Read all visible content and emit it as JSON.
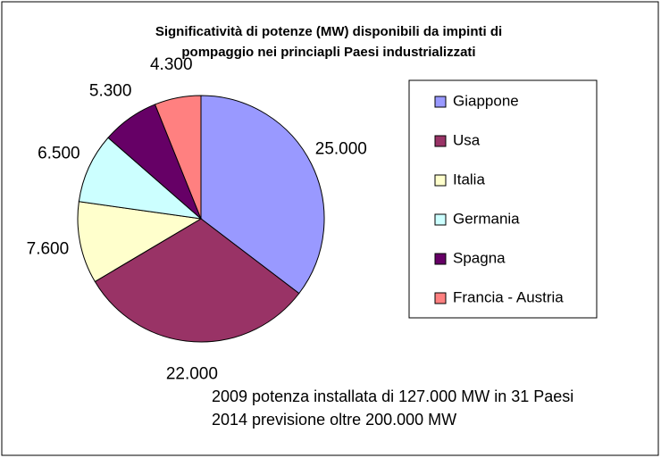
{
  "chart_data": {
    "type": "pie",
    "title": [
      "Significatività di potenze (MW) disponibili da impinti di",
      "pompaggio nei princiapli Paesi industrializzati"
    ],
    "categories": [
      "Giappone",
      "Usa",
      "Italia",
      "Germania",
      "Spagna",
      "Francia - Austria"
    ],
    "values": [
      25000,
      22000,
      7600,
      6500,
      5300,
      4300
    ],
    "value_labels": [
      "25.000",
      "22.000",
      "7.600",
      "6.500",
      "5.300",
      "4.300"
    ],
    "colors": [
      "#9999ff",
      "#993366",
      "#ffffcc",
      "#ccffff",
      "#660066",
      "#ff8080"
    ],
    "legend": "right",
    "annotations": [
      "2009 potenza installata di 127.000 MW in 31 Paesi",
      "2014 previsione oltre 200.000 MW"
    ]
  }
}
